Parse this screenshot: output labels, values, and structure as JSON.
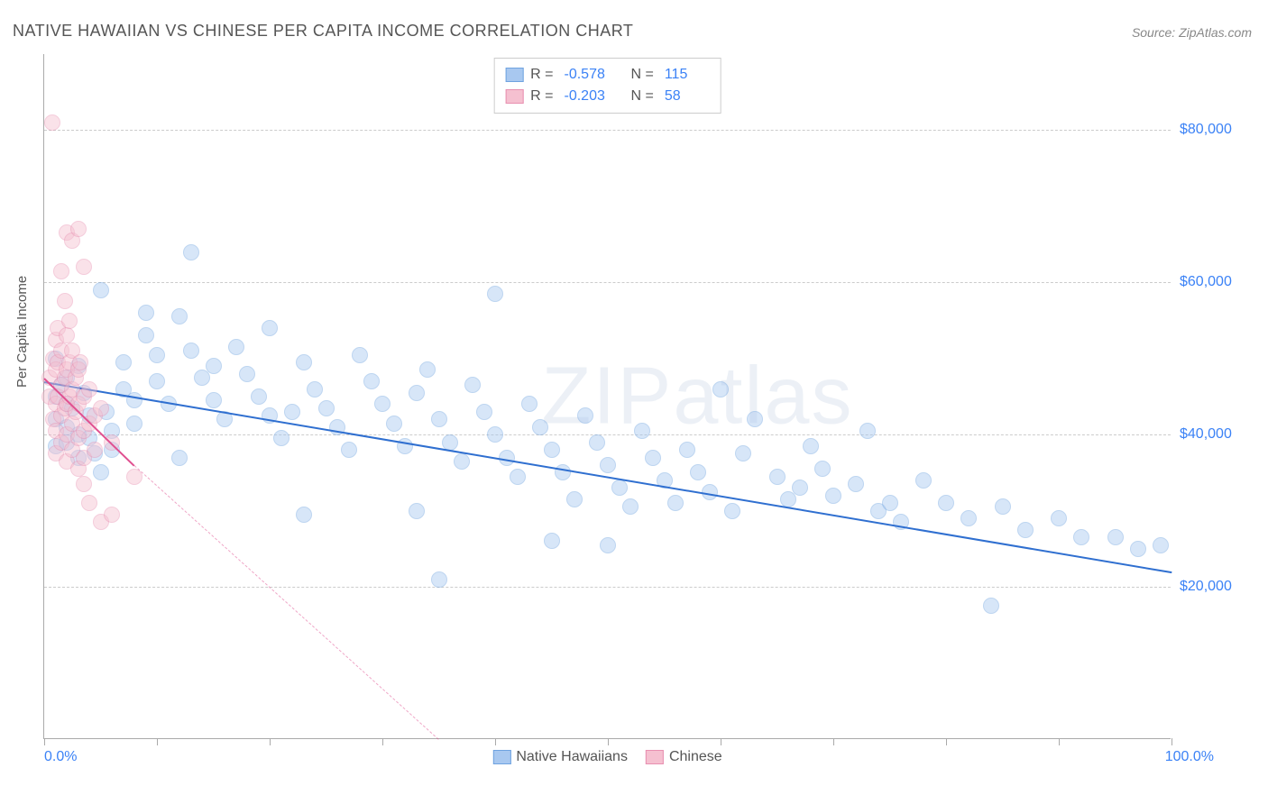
{
  "title": "NATIVE HAWAIIAN VS CHINESE PER CAPITA INCOME CORRELATION CHART",
  "source": "Source: ZipAtlas.com",
  "watermark": "ZIPatlas",
  "chart": {
    "type": "scatter",
    "yaxis_title": "Per Capita Income",
    "xlim": [
      0,
      100
    ],
    "ylim": [
      0,
      90000
    ],
    "ytick_values": [
      20000,
      40000,
      60000,
      80000
    ],
    "ytick_labels": [
      "$20,000",
      "$40,000",
      "$60,000",
      "$80,000"
    ],
    "xtick_values": [
      0,
      10,
      20,
      30,
      40,
      50,
      60,
      70,
      80,
      90,
      100
    ],
    "xaxis_label_left": "0.0%",
    "xaxis_label_right": "100.0%",
    "grid_color": "#cccccc",
    "axis_color": "#aaaaaa",
    "background_color": "#ffffff",
    "point_radius": 9,
    "point_opacity": 0.45,
    "series": [
      {
        "name": "Native Hawaiians",
        "color_fill": "#a8c8f0",
        "color_stroke": "#6fa3e0",
        "trend_color": "#2f6fd0",
        "trend": {
          "x1": 0,
          "y1": 47000,
          "x2": 100,
          "y2": 22000,
          "dash_after_x": 100
        },
        "R": "-0.578",
        "N": "115",
        "points": [
          [
            1,
            45000
          ],
          [
            1,
            42000
          ],
          [
            1,
            38500
          ],
          [
            1,
            50000
          ],
          [
            1.5,
            46500
          ],
          [
            2,
            44000
          ],
          [
            2,
            41000
          ],
          [
            2,
            39000
          ],
          [
            2,
            47500
          ],
          [
            2.5,
            43500
          ],
          [
            3,
            40000
          ],
          [
            3,
            37000
          ],
          [
            3,
            49000
          ],
          [
            3.5,
            45500
          ],
          [
            4,
            42500
          ],
          [
            4,
            39500
          ],
          [
            4.5,
            37500
          ],
          [
            5,
            59000
          ],
          [
            5,
            35000
          ],
          [
            5.5,
            43000
          ],
          [
            6,
            40500
          ],
          [
            6,
            38000
          ],
          [
            7,
            49500
          ],
          [
            7,
            46000
          ],
          [
            8,
            44500
          ],
          [
            8,
            41500
          ],
          [
            9,
            56000
          ],
          [
            9,
            53000
          ],
          [
            10,
            50500
          ],
          [
            10,
            47000
          ],
          [
            11,
            44000
          ],
          [
            12,
            55500
          ],
          [
            12,
            37000
          ],
          [
            13,
            51000
          ],
          [
            13,
            64000
          ],
          [
            14,
            47500
          ],
          [
            15,
            44500
          ],
          [
            15,
            49000
          ],
          [
            16,
            42000
          ],
          [
            17,
            51500
          ],
          [
            18,
            48000
          ],
          [
            19,
            45000
          ],
          [
            20,
            42500
          ],
          [
            20,
            54000
          ],
          [
            21,
            39500
          ],
          [
            22,
            43000
          ],
          [
            23,
            49500
          ],
          [
            24,
            46000
          ],
          [
            25,
            43500
          ],
          [
            26,
            41000
          ],
          [
            27,
            38000
          ],
          [
            28,
            50500
          ],
          [
            29,
            47000
          ],
          [
            30,
            44000
          ],
          [
            31,
            41500
          ],
          [
            32,
            38500
          ],
          [
            33,
            30000
          ],
          [
            33,
            45500
          ],
          [
            34,
            48500
          ],
          [
            35,
            42000
          ],
          [
            35,
            21000
          ],
          [
            36,
            39000
          ],
          [
            37,
            36500
          ],
          [
            38,
            46500
          ],
          [
            39,
            43000
          ],
          [
            40,
            40000
          ],
          [
            40,
            58500
          ],
          [
            41,
            37000
          ],
          [
            42,
            34500
          ],
          [
            43,
            44000
          ],
          [
            44,
            41000
          ],
          [
            45,
            38000
          ],
          [
            45,
            26000
          ],
          [
            46,
            35000
          ],
          [
            47,
            31500
          ],
          [
            48,
            42500
          ],
          [
            49,
            39000
          ],
          [
            50,
            36000
          ],
          [
            50,
            25500
          ],
          [
            51,
            33000
          ],
          [
            52,
            30500
          ],
          [
            53,
            40500
          ],
          [
            54,
            37000
          ],
          [
            55,
            34000
          ],
          [
            56,
            31000
          ],
          [
            57,
            38000
          ],
          [
            58,
            35000
          ],
          [
            59,
            32500
          ],
          [
            60,
            46000
          ],
          [
            61,
            30000
          ],
          [
            62,
            37500
          ],
          [
            63,
            42000
          ],
          [
            65,
            34500
          ],
          [
            66,
            31500
          ],
          [
            67,
            33000
          ],
          [
            68,
            38500
          ],
          [
            69,
            35500
          ],
          [
            70,
            32000
          ],
          [
            72,
            33500
          ],
          [
            73,
            40500
          ],
          [
            74,
            30000
          ],
          [
            75,
            31000
          ],
          [
            76,
            28500
          ],
          [
            78,
            34000
          ],
          [
            80,
            31000
          ],
          [
            82,
            29000
          ],
          [
            84,
            17500
          ],
          [
            85,
            30500
          ],
          [
            87,
            27500
          ],
          [
            90,
            29000
          ],
          [
            92,
            26500
          ],
          [
            95,
            26500
          ],
          [
            97,
            25000
          ],
          [
            99,
            25500
          ],
          [
            23,
            29500
          ]
        ]
      },
      {
        "name": "Chinese",
        "color_fill": "#f5c0d0",
        "color_stroke": "#e88fb0",
        "trend_color": "#e05090",
        "trend": {
          "x1": 0,
          "y1": 47500,
          "x2": 8,
          "y2": 36000,
          "dash_after_x": 8,
          "dash_x2": 35,
          "dash_y2": 0
        },
        "R": "-0.203",
        "N": "58",
        "points": [
          [
            0.5,
            45000
          ],
          [
            0.5,
            47500
          ],
          [
            0.7,
            81000
          ],
          [
            0.8,
            50000
          ],
          [
            0.8,
            42000
          ],
          [
            1,
            52500
          ],
          [
            1,
            48500
          ],
          [
            1,
            44000
          ],
          [
            1,
            40500
          ],
          [
            1,
            37500
          ],
          [
            1.2,
            54000
          ],
          [
            1.2,
            49500
          ],
          [
            1.2,
            45000
          ],
          [
            1.5,
            61500
          ],
          [
            1.5,
            51000
          ],
          [
            1.5,
            46500
          ],
          [
            1.5,
            42500
          ],
          [
            1.5,
            39000
          ],
          [
            1.8,
            57500
          ],
          [
            1.8,
            47500
          ],
          [
            1.8,
            43500
          ],
          [
            2,
            66500
          ],
          [
            2,
            53000
          ],
          [
            2,
            48500
          ],
          [
            2,
            44000
          ],
          [
            2,
            40000
          ],
          [
            2,
            36500
          ],
          [
            2.2,
            55000
          ],
          [
            2.2,
            49500
          ],
          [
            2.2,
            45000
          ],
          [
            2.5,
            65500
          ],
          [
            2.5,
            51000
          ],
          [
            2.5,
            46000
          ],
          [
            2.5,
            41500
          ],
          [
            2.5,
            38000
          ],
          [
            2.8,
            47500
          ],
          [
            2.8,
            43000
          ],
          [
            3,
            67000
          ],
          [
            3,
            48500
          ],
          [
            3,
            44000
          ],
          [
            3,
            39500
          ],
          [
            3,
            35500
          ],
          [
            3.2,
            49500
          ],
          [
            3.5,
            62000
          ],
          [
            3.5,
            45000
          ],
          [
            3.5,
            40500
          ],
          [
            3.5,
            37000
          ],
          [
            3.5,
            33500
          ],
          [
            4,
            46000
          ],
          [
            4,
            41500
          ],
          [
            4,
            31000
          ],
          [
            4.5,
            42500
          ],
          [
            4.5,
            38000
          ],
          [
            5,
            28500
          ],
          [
            5,
            43500
          ],
          [
            6,
            39000
          ],
          [
            6,
            29500
          ],
          [
            8,
            34500
          ]
        ]
      }
    ]
  },
  "legend_top": {
    "rows": [
      {
        "swatch_fill": "#a8c8f0",
        "swatch_stroke": "#6fa3e0",
        "r_label": "R =",
        "r_val": "-0.578",
        "n_label": "N =",
        "n_val": "115"
      },
      {
        "swatch_fill": "#f5c0d0",
        "swatch_stroke": "#e88fb0",
        "r_label": "R =",
        "r_val": "-0.203",
        "n_label": "N =",
        "n_val": "58"
      }
    ]
  },
  "legend_bottom": {
    "items": [
      {
        "swatch_fill": "#a8c8f0",
        "swatch_stroke": "#6fa3e0",
        "label": "Native Hawaiians"
      },
      {
        "swatch_fill": "#f5c0d0",
        "swatch_stroke": "#e88fb0",
        "label": "Chinese"
      }
    ]
  }
}
